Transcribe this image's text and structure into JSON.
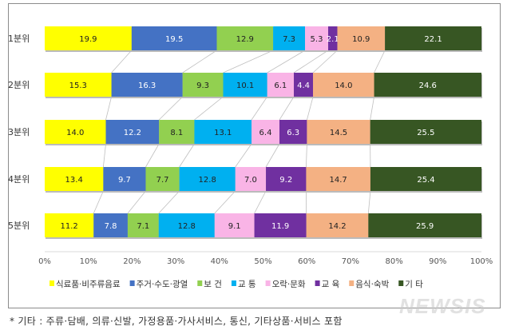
{
  "chart_data": {
    "type": "bar",
    "orientation": "horizontal",
    "stacked": "percent",
    "categories": [
      "1분위",
      "2분위",
      "3분위",
      "4분위",
      "5분위"
    ],
    "series": [
      {
        "name": "식료품·비주류음료",
        "color": "#ffff00",
        "values": [
          19.9,
          15.3,
          14.0,
          13.4,
          11.2
        ]
      },
      {
        "name": "주거·수도·광열",
        "color": "#4472c4",
        "values": [
          19.5,
          16.3,
          12.2,
          9.7,
          7.8
        ]
      },
      {
        "name": "보 건",
        "color": "#92d050",
        "values": [
          12.9,
          9.3,
          8.1,
          7.7,
          7.1
        ]
      },
      {
        "name": "교 통",
        "color": "#00b0f0",
        "values": [
          7.3,
          10.1,
          13.1,
          12.8,
          12.8
        ]
      },
      {
        "name": "오락·문화",
        "color": "#f9b4e6",
        "values": [
          5.3,
          6.1,
          6.4,
          7.0,
          9.1
        ]
      },
      {
        "name": "교 육",
        "color": "#7030a0",
        "values": [
          2.1,
          4.4,
          6.3,
          9.2,
          11.9
        ]
      },
      {
        "name": "음식·숙박",
        "color": "#f4b183",
        "values": [
          10.9,
          14.0,
          14.5,
          14.7,
          14.2
        ]
      },
      {
        "name": "기 타",
        "color": "#375623",
        "values": [
          22.1,
          24.6,
          25.5,
          25.4,
          25.9
        ]
      }
    ],
    "xticks": [
      "0%",
      "10%",
      "20%",
      "30%",
      "40%",
      "50%",
      "60%",
      "70%",
      "80%",
      "90%",
      "100%"
    ],
    "xlim": [
      0,
      100
    ],
    "legend": "bottom",
    "series_lines": true,
    "grid": false
  },
  "footnote": "* 기타 : 주류·담배, 의류·신발, 가정용품·가사서비스, 통신, 기타상품·서비스 포함",
  "watermark": "NEWSIS"
}
